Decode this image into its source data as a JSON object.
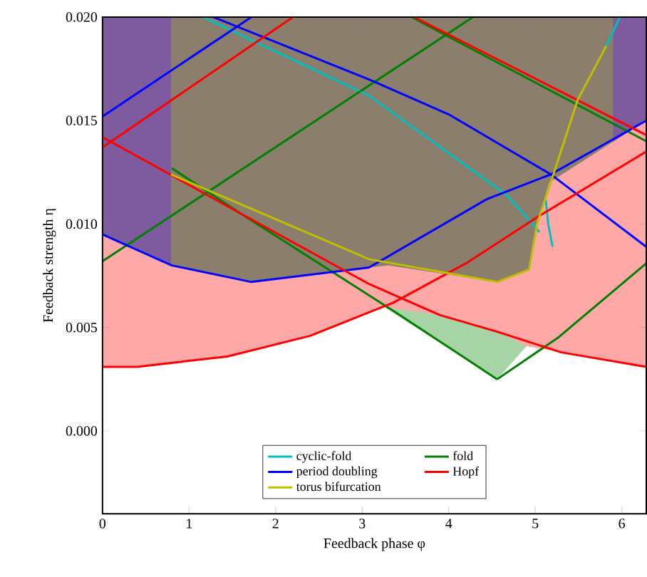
{
  "chart_data": {
    "type": "line",
    "xlabel": "Feedback phase φ",
    "ylabel": "Feedback strength η",
    "xlim": [
      0,
      6.2832
    ],
    "ylim": [
      -0.004,
      0.02
    ],
    "xticks": [
      0,
      1,
      2,
      3,
      4,
      5,
      6
    ],
    "yticks": [
      {
        "value": 0,
        "label": "0.000"
      },
      {
        "value": 0.005,
        "label": "0.005"
      },
      {
        "value": 0.01,
        "label": "0.010"
      },
      {
        "value": 0.015,
        "label": "0.015"
      },
      {
        "value": 0.02,
        "label": "0.020"
      }
    ],
    "grid": false,
    "legend": "bottom",
    "line_style": "solid",
    "marker": "none",
    "series": [
      {
        "type": "area",
        "color": "#7e5a9e",
        "x": [
          0,
          6.2832
        ],
        "values": [
          0.02,
          0.02
        ]
      },
      {
        "type": "area",
        "color": "#8c7e6c",
        "x": [
          0.79,
          5.9
        ],
        "values": [
          0.02,
          0.02
        ]
      },
      {
        "type": "area",
        "color": "#ffa8a8",
        "x": [
          0,
          0.8,
          1.72,
          3.08,
          3.3,
          4.56,
          4.93,
          5.02,
          5.16,
          6.2832
        ],
        "values": [
          0.0095,
          0.008,
          0.0072,
          0.0079,
          0.008,
          0.0072,
          0.0078,
          0.01,
          0.012,
          0.015
        ]
      },
      {
        "type": "area",
        "color": "#a6d4a6",
        "x": [
          3.25,
          3.9,
          4.56,
          4.9
        ],
        "values": [
          0.006,
          0.0056,
          0.0048,
          0.0041
        ]
      },
      {
        "type": "area",
        "color": "#ffffff",
        "x": [
          0,
          0.4,
          1.44,
          2.4,
          3.25,
          4.56,
          4.9,
          5.3,
          6.2832
        ],
        "values": [
          0.0031,
          0.0031,
          0.0036,
          0.0046,
          0.006,
          0.0025,
          0.0041,
          0.0038,
          0.0031
        ]
      },
      {
        "name": "cyclic-fold",
        "color": "#00bfbf",
        "x": [
          1.16,
          3.08,
          4.67,
          5.05,
          null,
          5.12,
          5.15,
          5.2,
          null,
          5.82,
          5.98
        ],
        "values": [
          0.02,
          0.0162,
          0.0114,
          0.0096,
          null,
          0.0112,
          0.01,
          0.0089,
          null,
          0.0186,
          0.02
        ]
      },
      {
        "name": "period doubling",
        "color": "#0000ff",
        "x": [
          0,
          1.72,
          null,
          1.28,
          3.13,
          4.0,
          5.18,
          6.2832,
          null,
          0,
          0.8,
          1.72,
          3.08,
          4.44,
          5.18,
          6.2832
        ],
        "values": [
          0.0152,
          0.02,
          null,
          0.02,
          0.0169,
          0.0153,
          0.0124,
          0.0089,
          null,
          0.0095,
          0.008,
          0.0072,
          0.0079,
          0.0112,
          0.0124,
          0.015
        ]
      },
      {
        "name": "torus bifurcation",
        "color": "#bfbf00",
        "x": [
          0.79,
          3.08,
          4.56,
          4.93,
          5.02,
          5.21,
          5.49,
          5.82
        ],
        "values": [
          0.0124,
          0.0083,
          0.0072,
          0.0078,
          0.01,
          0.0124,
          0.016,
          0.0186
        ]
      },
      {
        "name": "fold",
        "color": "#008000",
        "x": [
          0,
          4.28,
          null,
          3.57,
          6.2832,
          null,
          0.8,
          1.6,
          3.4,
          4.56,
          null,
          4.56,
          5.26,
          6.2832
        ],
        "values": [
          0.0082,
          0.02,
          null,
          0.02,
          0.014,
          null,
          0.0127,
          0.0105,
          0.0057,
          0.0025,
          null,
          0.0025,
          0.0045,
          0.0081
        ]
      },
      {
        "name": "Hopf",
        "color": "#ff0000",
        "x": [
          0,
          2.2,
          null,
          3.6,
          6.2832,
          null,
          0,
          1.6,
          3.08,
          3.9,
          4.56,
          5.3,
          6.2832,
          null,
          0,
          0.4,
          1.44,
          2.4,
          3.36,
          4.2,
          5.05,
          6.2832
        ],
        "values": [
          0.0137,
          0.02,
          null,
          0.02,
          0.0143,
          null,
          0.0142,
          0.0105,
          0.0071,
          0.0056,
          0.0048,
          0.0038,
          0.0031,
          null,
          0.0031,
          0.0031,
          0.0036,
          0.0046,
          0.0062,
          0.0081,
          0.0104,
          0.0135
        ]
      }
    ]
  }
}
